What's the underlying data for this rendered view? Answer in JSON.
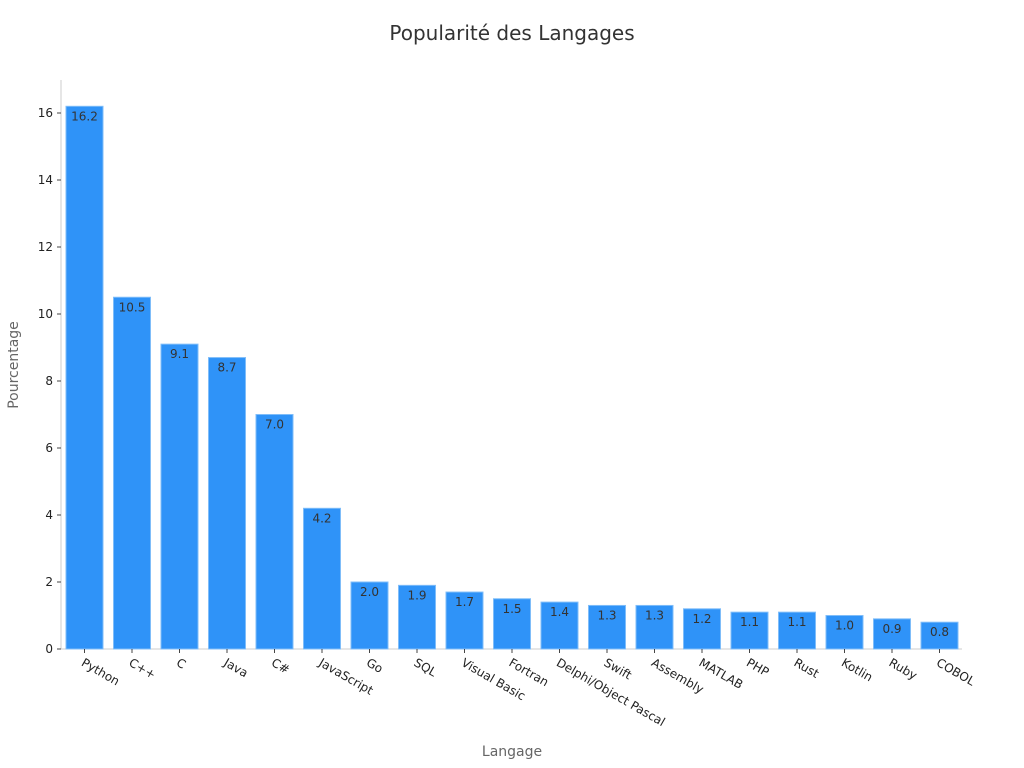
{
  "chart_data": {
    "type": "bar",
    "title": "Popularité des Langages",
    "xlabel": "Langage",
    "ylabel": "Pourcentage",
    "categories": [
      "Python",
      "C++",
      "C",
      "Java",
      "C#",
      "JavaScript",
      "Go",
      "SQL",
      "Visual Basic",
      "Fortran",
      "Delphi/Object Pascal",
      "Swift",
      "Assembly",
      "MATLAB",
      "PHP",
      "Rust",
      "Kotlin",
      "Ruby",
      "COBOL"
    ],
    "values": [
      16.2,
      10.5,
      9.1,
      8.7,
      7.0,
      4.2,
      2.0,
      1.9,
      1.7,
      1.5,
      1.4,
      1.3,
      1.3,
      1.2,
      1.1,
      1.1,
      1.0,
      0.9,
      0.8
    ],
    "data_labels": [
      "16.2",
      "10.5",
      "9.1",
      "8.7",
      "7.0",
      "4.2",
      "2.0",
      "1.9",
      "1.7",
      "1.5",
      "1.4",
      "1.3",
      "1.3",
      "1.2",
      "1.1",
      "1.1",
      "1.0",
      "0.9",
      "0.8"
    ],
    "yticks": [
      0,
      2,
      4,
      6,
      8,
      10,
      12,
      14,
      16
    ],
    "ylim": [
      0,
      17
    ],
    "grid": false,
    "legend": "none",
    "bar_color": "#2f93f8",
    "bar_edge_color": "#7fbdf9"
  }
}
